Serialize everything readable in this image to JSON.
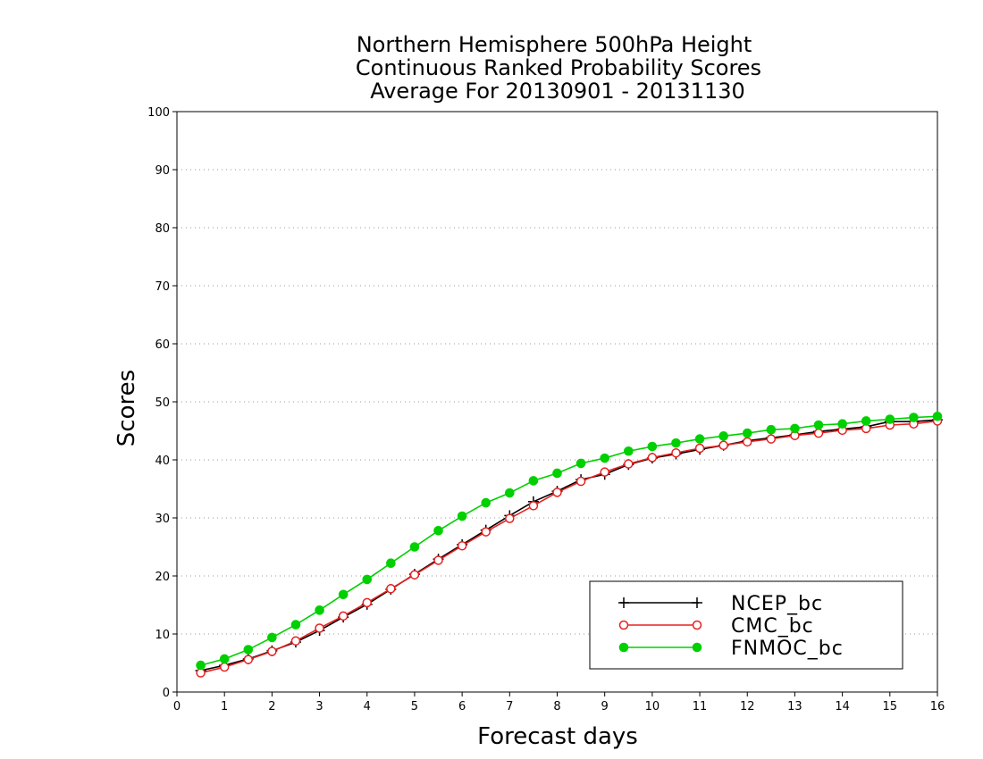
{
  "chart_data": {
    "type": "line",
    "title": [
      "Northern Hemisphere 500hPa Height",
      "Continuous Ranked Probability Scores",
      "Average For 20130901 - 20131130"
    ],
    "xlabel": "Forecast days",
    "ylabel": "Scores",
    "xlim": [
      0,
      16
    ],
    "ylim": [
      0,
      100
    ],
    "xticks": [
      0,
      1,
      2,
      3,
      4,
      5,
      6,
      7,
      8,
      9,
      10,
      11,
      12,
      13,
      14,
      15,
      16
    ],
    "yticks": [
      0,
      10,
      20,
      30,
      40,
      50,
      60,
      70,
      80,
      90,
      100
    ],
    "grid": true,
    "legend_position": "bottom-right",
    "x": [
      0.5,
      1,
      1.5,
      2,
      2.5,
      3,
      3.5,
      4,
      4.5,
      5,
      5.5,
      6,
      6.5,
      7,
      7.5,
      8,
      8.5,
      9,
      9.5,
      10,
      10.5,
      11,
      11.5,
      12,
      12.5,
      13,
      13.5,
      14,
      14.5,
      15,
      15.5,
      16
    ],
    "series": [
      {
        "name": "NCEP_bc",
        "color": "#000000",
        "marker": "plus",
        "values": [
          3.7,
          4.6,
          5.7,
          7.1,
          8.6,
          10.6,
          12.9,
          15.1,
          17.7,
          20.3,
          22.9,
          25.4,
          27.9,
          30.4,
          32.8,
          34.6,
          36.6,
          37.5,
          39.2,
          40.3,
          41.0,
          41.8,
          42.5,
          43.3,
          43.8,
          44.3,
          44.9,
          45.3,
          45.7,
          46.6,
          46.6,
          46.9
        ]
      },
      {
        "name": "CMC_bc",
        "color": "#e62020",
        "marker": "open-circle",
        "values": [
          3.3,
          4.3,
          5.6,
          7.0,
          8.8,
          11.0,
          13.1,
          15.4,
          17.8,
          20.2,
          22.7,
          25.2,
          27.6,
          29.9,
          32.1,
          34.4,
          36.3,
          37.9,
          39.3,
          40.4,
          41.2,
          42.0,
          42.5,
          43.1,
          43.6,
          44.2,
          44.6,
          45.1,
          45.4,
          46.0,
          46.2,
          46.7
        ]
      },
      {
        "name": "FNMOC_bc",
        "color": "#00d000",
        "marker": "filled-circle",
        "values": [
          4.6,
          5.7,
          7.3,
          9.4,
          11.6,
          14.1,
          16.8,
          19.4,
          22.2,
          25.0,
          27.8,
          30.3,
          32.6,
          34.3,
          36.4,
          37.7,
          39.4,
          40.3,
          41.5,
          42.3,
          42.9,
          43.6,
          44.1,
          44.6,
          45.2,
          45.4,
          46.0,
          46.2,
          46.7,
          47.0,
          47.3,
          47.5
        ]
      }
    ]
  }
}
